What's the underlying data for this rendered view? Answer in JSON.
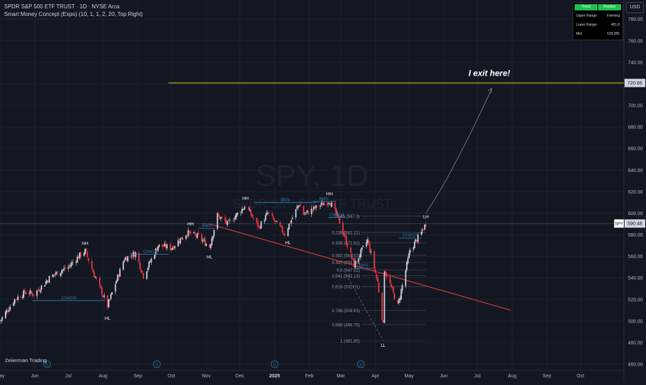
{
  "header": {
    "title": "SPDR S&P 500 ETF TRUST · 1D · NYSE Arca",
    "indicator": "Smart Money Concept (Expo) (10, 1, 1, 2, 20, Top Right)"
  },
  "watermark": {
    "symbol": "SPY, 1D",
    "name": "SPDR S&P 500 ETF TRUST"
  },
  "currency_button": "USD",
  "info_table": {
    "header": [
      "Trend",
      "Positive"
    ],
    "rows": [
      [
        "Upper Range:",
        "Forming"
      ],
      [
        "Lower Range:",
        "481.8"
      ],
      [
        "Mid:",
        "536.385"
      ]
    ]
  },
  "brand": "Zeiierman Trading",
  "colors": {
    "background": "#131722",
    "grid": "#1e222d",
    "up_candle": "#d1d4dc",
    "down_candle": "#f23645",
    "structure_line": "#3179a6",
    "fib_line": "#434651",
    "target_line": "#7d7a1c",
    "trendline": "#d9363e",
    "axis_text": "#b2b5be",
    "price_tag_bg": "#d1d4dc",
    "projection_arrow": "#787b86",
    "events_circle": "#3179a6"
  },
  "chart_data": {
    "type": "candlestick",
    "symbol": "SPY",
    "interval": "1D",
    "ylim": [
      455,
      790
    ],
    "yticks": [
      460,
      480,
      500,
      520,
      540,
      560,
      580,
      600,
      620,
      640,
      660,
      680,
      700,
      720,
      740,
      760,
      780
    ],
    "x_date_range": [
      "2024-05-01",
      "2025-10-31"
    ],
    "xticks": [
      {
        "label": "May",
        "date": "2024-05-01"
      },
      {
        "label": "Jun",
        "date": "2024-06-01"
      },
      {
        "label": "Jul",
        "date": "2024-07-01"
      },
      {
        "label": "Aug",
        "date": "2024-08-01"
      },
      {
        "label": "Sep",
        "date": "2024-09-01"
      },
      {
        "label": "Oct",
        "date": "2024-10-01"
      },
      {
        "label": "Nov",
        "date": "2024-11-01"
      },
      {
        "label": "Dec",
        "date": "2024-12-01"
      },
      {
        "label": "2025",
        "date": "2025-01-01"
      },
      {
        "label": "Feb",
        "date": "2025-02-01"
      },
      {
        "label": "Mar",
        "date": "2025-03-01"
      },
      {
        "label": "Apr",
        "date": "2025-04-01"
      },
      {
        "label": "May",
        "date": "2025-05-01"
      },
      {
        "label": "Jun",
        "date": "2025-06-01"
      },
      {
        "label": "Jul",
        "date": "2025-07-01"
      },
      {
        "label": "Aug",
        "date": "2025-08-01"
      },
      {
        "label": "Sep",
        "date": "2025-09-01"
      },
      {
        "label": "Oct",
        "date": "2025-10-01"
      }
    ],
    "price_path": [
      {
        "date": "2024-05-01",
        "close": 500
      },
      {
        "date": "2024-05-14",
        "close": 520
      },
      {
        "date": "2024-05-24",
        "close": 527
      },
      {
        "date": "2024-05-31",
        "close": 525
      },
      {
        "date": "2024-06-07",
        "close": 532
      },
      {
        "date": "2024-06-14",
        "close": 540
      },
      {
        "date": "2024-06-21",
        "close": 545
      },
      {
        "date": "2024-07-01",
        "close": 550
      },
      {
        "date": "2024-07-10",
        "close": 560
      },
      {
        "date": "2024-07-16",
        "close": 565
      },
      {
        "date": "2024-07-24",
        "close": 543
      },
      {
        "date": "2024-08-05",
        "close": 514
      },
      {
        "date": "2024-08-12",
        "close": 535
      },
      {
        "date": "2024-08-20",
        "close": 558
      },
      {
        "date": "2024-08-30",
        "close": 563
      },
      {
        "date": "2024-09-06",
        "close": 542
      },
      {
        "date": "2024-09-19",
        "close": 570
      },
      {
        "date": "2024-10-01",
        "close": 568
      },
      {
        "date": "2024-10-15",
        "close": 582
      },
      {
        "date": "2024-10-25",
        "close": 578
      },
      {
        "date": "2024-11-04",
        "close": 569
      },
      {
        "date": "2024-11-11",
        "close": 598
      },
      {
        "date": "2024-11-20",
        "close": 590
      },
      {
        "date": "2024-12-06",
        "close": 607
      },
      {
        "date": "2024-12-18",
        "close": 587
      },
      {
        "date": "2024-12-26",
        "close": 600
      },
      {
        "date": "2025-01-10",
        "close": 581
      },
      {
        "date": "2025-01-23",
        "close": 609
      },
      {
        "date": "2025-01-27",
        "close": 599
      },
      {
        "date": "2025-02-19",
        "close": 612
      },
      {
        "date": "2025-02-28",
        "close": 592
      },
      {
        "date": "2025-03-13",
        "close": 552
      },
      {
        "date": "2025-03-25",
        "close": 575
      },
      {
        "date": "2025-04-03",
        "close": 536
      },
      {
        "date": "2025-04-08",
        "close": 496
      },
      {
        "date": "2025-04-09",
        "close": 548
      },
      {
        "date": "2025-04-21",
        "close": 514
      },
      {
        "date": "2025-05-02",
        "close": 566
      },
      {
        "date": "2025-05-12",
        "close": 582
      },
      {
        "date": "2025-05-16",
        "close": 590.46
      }
    ],
    "last_price": {
      "label": "SPY",
      "value": "590.46"
    },
    "target": {
      "value": "720.85",
      "label": "I exit here!"
    },
    "fib_levels": [
      {
        "label": "0.146 (597.3)",
        "value": 597.3
      },
      {
        "label": "0.236 (582.21)",
        "value": 582.21
      },
      {
        "label": "0.309 (572.62)",
        "value": 572.62
      },
      {
        "label": "0.382 (561.02)",
        "value": 561.02
      },
      {
        "label": "0.447 (554.48)",
        "value": 554.48
      },
      {
        "label": "0.5 (547.52)",
        "value": 547.52
      },
      {
        "label": "0.541 (542.13)",
        "value": 542.13
      },
      {
        "label": "0.618 (532.01)",
        "value": 532.01
      },
      {
        "label": "0.786 (509.93)",
        "value": 509.93
      },
      {
        "label": "0.886 (496.78)",
        "value": 496.78
      },
      {
        "label": "1 (481.80)",
        "value": 481.8
      }
    ],
    "structure_labels": [
      {
        "text": "HH",
        "date": "2024-07-16",
        "value": 568,
        "pos": "above"
      },
      {
        "text": "HL",
        "date": "2024-08-05",
        "value": 507,
        "pos": "below"
      },
      {
        "text": "HH",
        "date": "2024-10-18",
        "value": 586,
        "pos": "above"
      },
      {
        "text": "HL",
        "date": "2024-11-04",
        "value": 564,
        "pos": "below"
      },
      {
        "text": "HH",
        "date": "2024-12-06",
        "value": 610,
        "pos": "above"
      },
      {
        "text": "HL",
        "date": "2025-01-13",
        "value": 577,
        "pos": "below"
      },
      {
        "text": "HH",
        "date": "2025-02-19",
        "value": 614,
        "pos": "above"
      },
      {
        "text": "LL",
        "date": "2025-04-08",
        "value": 481.8,
        "pos": "below"
      },
      {
        "text": "LH",
        "date": "2025-05-16",
        "value": 593,
        "pos": "above"
      }
    ],
    "structure_breaks": [
      {
        "text": "CHoCH",
        "from": "2024-05-30",
        "to": "2024-08-03",
        "value": 519
      },
      {
        "text": "CHoCH",
        "from": "2024-08-28",
        "to": "2024-09-28",
        "value": 562
      },
      {
        "text": "BMS",
        "from": "2024-10-25",
        "to": "2024-11-09",
        "value": 586
      },
      {
        "text": "BMS",
        "from": "2024-12-13",
        "to": "2025-02-08",
        "value": 610
      },
      {
        "text": "BMS",
        "from": "2025-02-04",
        "to": "2025-02-24",
        "value": 611
      },
      {
        "text": "CHoCH",
        "from": "2025-02-18",
        "to": "2025-03-05",
        "value": 596
      },
      {
        "text": "BMS",
        "from": "2025-03-13",
        "to": "2025-03-30",
        "value": 549
      },
      {
        "text": "CHoCH",
        "from": "2025-04-22",
        "to": "2025-05-12",
        "value": 577
      }
    ],
    "event_markers": [
      "2024-06-12",
      "2024-09-18",
      "2025-01-01",
      "2025-03-19"
    ]
  }
}
